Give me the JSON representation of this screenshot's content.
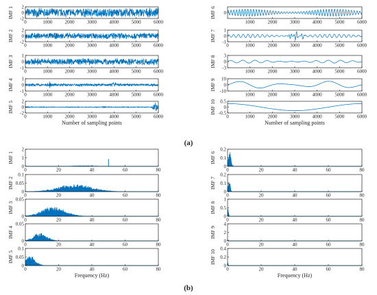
{
  "figure": {
    "panel_a_label": "(a)",
    "panel_b_label": "(b)",
    "accent_color": "#0072BD"
  },
  "chart_data": [
    {
      "type": "line",
      "panel": "a",
      "title": "",
      "ylabel": "IMF 1",
      "xlabel": "",
      "xlim": [
        0,
        6000
      ],
      "ylim": [
        -2,
        2
      ],
      "xticks": [
        0,
        1000,
        2000,
        3000,
        4000,
        5000,
        6000
      ],
      "yticks": [
        -2,
        0,
        2
      ],
      "signal": {
        "kind": "noise",
        "amp": 1.7,
        "cycles": 0,
        "bursts": []
      }
    },
    {
      "type": "line",
      "panel": "a",
      "title": "",
      "ylabel": "IMF 2",
      "xlabel": "",
      "xlim": [
        0,
        6000
      ],
      "ylim": [
        -2,
        2
      ],
      "xticks": [
        0,
        1000,
        2000,
        3000,
        4000,
        5000,
        6000
      ],
      "yticks": [
        -2,
        0,
        2
      ],
      "signal": {
        "kind": "noise",
        "amp": 1.2,
        "cycles": 0,
        "bursts": []
      }
    },
    {
      "type": "line",
      "panel": "a",
      "title": "",
      "ylabel": "IMF 3",
      "xlabel": "",
      "xlim": [
        0,
        6000
      ],
      "ylim": [
        -1,
        1
      ],
      "xticks": [
        0,
        1000,
        2000,
        3000,
        4000,
        5000,
        6000
      ],
      "yticks": [
        -1,
        0,
        1
      ],
      "signal": {
        "kind": "noise",
        "amp": 0.6,
        "cycles": 0,
        "bursts": []
      }
    },
    {
      "type": "line",
      "panel": "a",
      "title": "",
      "ylabel": "IMF 4",
      "xlabel": "",
      "xlim": [
        0,
        6000
      ],
      "ylim": [
        -1,
        1
      ],
      "xticks": [
        0,
        1000,
        2000,
        3000,
        4000,
        5000,
        6000
      ],
      "yticks": [
        -1,
        0,
        1
      ],
      "signal": {
        "kind": "noise",
        "amp": 0.25,
        "cycles": 0,
        "bursts": [
          [
            1100,
            0.7
          ],
          [
            4000,
            0.5
          ],
          [
            2500,
            0.4
          ]
        ]
      }
    },
    {
      "type": "line",
      "panel": "a",
      "title": "",
      "ylabel": "IMF 5",
      "xlabel": "Number of sampling points",
      "xlim": [
        0,
        6000
      ],
      "ylim": [
        -2,
        2
      ],
      "xticks": [
        0,
        1000,
        2000,
        3000,
        4000,
        5000,
        6000
      ],
      "yticks": [
        -2,
        0,
        2
      ],
      "signal": {
        "kind": "noise",
        "amp": 0.15,
        "cycles": 0,
        "bursts": [
          [
            100,
            0.5
          ],
          [
            5900,
            1.6
          ],
          [
            5800,
            1.0
          ],
          [
            3500,
            0.3
          ]
        ]
      }
    },
    {
      "type": "line",
      "panel": "a",
      "title": "",
      "ylabel": "IMF 6",
      "xlabel": "",
      "xlim": [
        0,
        6000
      ],
      "ylim": [
        -0.5,
        0.5
      ],
      "xticks": [
        1000,
        2000,
        3000,
        4000,
        5000,
        6000
      ],
      "yticks": [
        0
      ],
      "signal": {
        "kind": "wave",
        "amp": 0.3,
        "cycles": 48,
        "bursts": []
      }
    },
    {
      "type": "line",
      "panel": "a",
      "title": "",
      "ylabel": "IMF 7",
      "xlabel": "",
      "xlim": [
        0,
        6000
      ],
      "ylim": [
        -1,
        1
      ],
      "xticks": [
        0,
        1000,
        2000,
        3000,
        4000,
        5000,
        6000
      ],
      "yticks": [
        -1,
        0,
        1
      ],
      "signal": {
        "kind": "wave",
        "amp": 0.3,
        "cycles": 28,
        "bursts": [
          [
            3050,
            0.9
          ],
          [
            2800,
            0.5
          ],
          [
            3350,
            0.5
          ]
        ]
      }
    },
    {
      "type": "line",
      "panel": "a",
      "title": "",
      "ylabel": "IMF 8",
      "xlabel": "",
      "xlim": [
        0,
        6000
      ],
      "ylim": [
        -3,
        3
      ],
      "xticks": [
        1000,
        2000,
        3000,
        4000,
        5000,
        6000
      ],
      "yticks": [
        -3,
        0,
        3
      ],
      "signal": {
        "kind": "wave",
        "amp": 0.7,
        "cycles": 11,
        "bursts": []
      }
    },
    {
      "type": "line",
      "panel": "a",
      "title": "",
      "ylabel": "IMF 9",
      "xlabel": "",
      "xlim": [
        0,
        6000
      ],
      "ylim": [
        -10,
        10
      ],
      "xticks": [
        1000,
        2000,
        3000,
        4000,
        5000,
        6000
      ],
      "yticks": [
        -10,
        0,
        10
      ],
      "signal": {
        "kind": "wave",
        "amp": 6,
        "cycles": 3,
        "bursts": []
      }
    },
    {
      "type": "line",
      "panel": "a",
      "title": "",
      "ylabel": "IMF 10",
      "xlabel": "Number of sampling points",
      "xlim": [
        0,
        6000
      ],
      "ylim": [
        -0.5,
        0.5
      ],
      "xticks": [
        0,
        1000,
        2000,
        3000,
        4000,
        5000,
        6000
      ],
      "yticks": [
        -0.5,
        0,
        0.5
      ],
      "signal": {
        "kind": "slow",
        "amp": 0.3,
        "cycles": 1,
        "bursts": []
      }
    },
    {
      "type": "area",
      "panel": "b",
      "title": "",
      "ylabel": "IMF 1",
      "xlabel": "",
      "xlim": [
        0,
        80
      ],
      "ylim": [
        0,
        2
      ],
      "xticks": [
        0,
        20,
        40,
        60,
        80
      ],
      "yticks": [
        0,
        1,
        2
      ],
      "spectrum": {
        "center": 35,
        "width": 6,
        "peak": 0.08,
        "spikes": [
          [
            50,
            0.85
          ]
        ]
      }
    },
    {
      "type": "area",
      "panel": "b",
      "title": "",
      "ylabel": "IMF 2",
      "xlabel": "",
      "xlim": [
        0,
        80
      ],
      "ylim": [
        0,
        0.1
      ],
      "xticks": [
        0,
        20,
        40,
        60,
        80
      ],
      "yticks": [
        0,
        0.05,
        0.1
      ],
      "spectrum": {
        "center": 30,
        "width": 10,
        "peak": 0.045,
        "spikes": []
      }
    },
    {
      "type": "area",
      "panel": "b",
      "title": "",
      "ylabel": "IMF 3",
      "xlabel": "",
      "xlim": [
        0,
        80
      ],
      "ylim": [
        0,
        0.05
      ],
      "xticks": [
        0,
        20,
        40,
        60,
        80
      ],
      "yticks": [
        0,
        0.05
      ],
      "spectrum": {
        "center": 17,
        "width": 7,
        "peak": 0.03,
        "spikes": []
      }
    },
    {
      "type": "area",
      "panel": "b",
      "title": "",
      "ylabel": "IMF 4",
      "xlabel": "",
      "xlim": [
        0,
        80
      ],
      "ylim": [
        0,
        0.05
      ],
      "xticks": [
        0,
        20,
        40,
        60,
        80
      ],
      "yticks": [
        0,
        0.05
      ],
      "spectrum": {
        "center": 9,
        "width": 4,
        "peak": 0.025,
        "spikes": []
      }
    },
    {
      "type": "area",
      "panel": "b",
      "title": "",
      "ylabel": "IMF 5",
      "xlabel": "Frequency (Hz)",
      "xlim": [
        0,
        80
      ],
      "ylim": [
        0,
        0.1
      ],
      "xticks": [
        0,
        20,
        40,
        60,
        80
      ],
      "yticks": [
        0,
        0.05,
        0.1
      ],
      "spectrum": {
        "center": 3,
        "width": 3,
        "peak": 0.06,
        "spikes": []
      }
    },
    {
      "type": "area",
      "panel": "b",
      "title": "",
      "ylabel": "IMF 6",
      "xlabel": "",
      "xlim": [
        0,
        80
      ],
      "ylim": [
        0,
        0.2
      ],
      "xticks": [
        0,
        20,
        40,
        60,
        80
      ],
      "yticks": [
        0,
        0.1,
        0.2
      ],
      "spectrum": {
        "center": 1.2,
        "width": 0.8,
        "peak": 0.18,
        "spikes": []
      }
    },
    {
      "type": "area",
      "panel": "b",
      "title": "",
      "ylabel": "IMF 7",
      "xlabel": "",
      "xlim": [
        0,
        80
      ],
      "ylim": [
        0,
        0.2
      ],
      "xticks": [
        0,
        20,
        40,
        60,
        80
      ],
      "yticks": [
        0,
        0.1,
        0.2
      ],
      "spectrum": {
        "center": 0.9,
        "width": 0.6,
        "peak": 0.15,
        "spikes": []
      }
    },
    {
      "type": "area",
      "panel": "b",
      "title": "",
      "ylabel": "IMF 8",
      "xlabel": "",
      "xlim": [
        0,
        80
      ],
      "ylim": [
        0,
        1
      ],
      "xticks": [
        0,
        20,
        40,
        60,
        80
      ],
      "yticks": [
        0,
        0.5,
        1
      ],
      "spectrum": {
        "center": 0.4,
        "width": 0.3,
        "peak": 0.55,
        "spikes": []
      }
    },
    {
      "type": "area",
      "panel": "b",
      "title": "",
      "ylabel": "IMF 9",
      "xlabel": "",
      "xlim": [
        0,
        80
      ],
      "ylim": [
        0,
        4
      ],
      "xticks": [
        0,
        20,
        40,
        60,
        80
      ],
      "yticks": [
        0,
        2,
        4
      ],
      "spectrum": {
        "center": 0.2,
        "width": 0.2,
        "peak": 0.5,
        "spikes": []
      }
    },
    {
      "type": "area",
      "panel": "b",
      "title": "",
      "ylabel": "IMF 10",
      "xlabel": "Frequency (Hz)",
      "xlim": [
        0,
        80
      ],
      "ylim": [
        0,
        0.4
      ],
      "xticks": [
        0,
        20,
        40,
        60,
        80
      ],
      "yticks": [
        0,
        0.2,
        0.4
      ],
      "spectrum": {
        "center": 0.1,
        "width": 0.1,
        "peak": 0.2,
        "spikes": []
      }
    }
  ]
}
